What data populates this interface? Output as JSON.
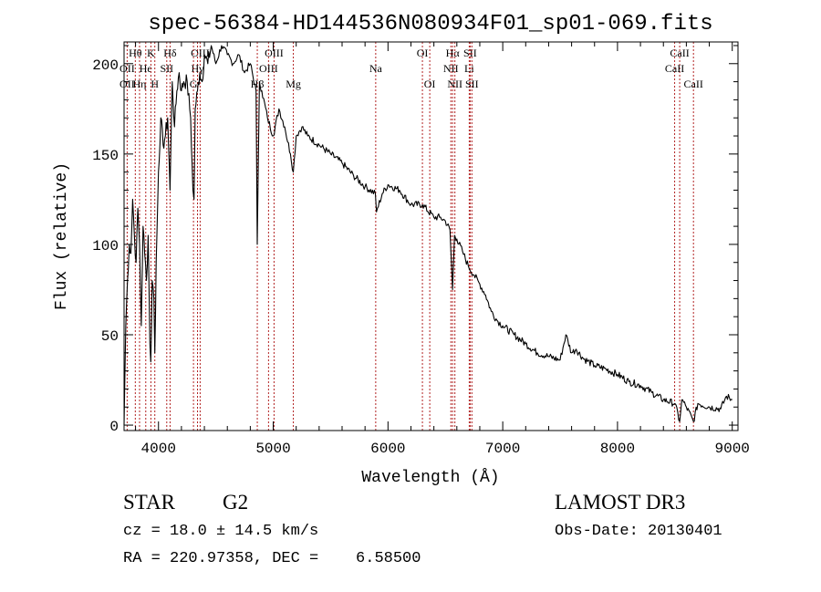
{
  "chart_data": {
    "type": "line",
    "title": "spec-56384-HD144536N080934F01_sp01-069.fits",
    "xlabel": "Wavelength (Å)",
    "ylabel": "Flux (relative)",
    "xlim": [
      3700,
      9050
    ],
    "ylim": [
      -3,
      212
    ],
    "xticks": [
      4000,
      5000,
      6000,
      7000,
      8000,
      9000
    ],
    "yticks": [
      0,
      50,
      100,
      150,
      200
    ],
    "grid": false,
    "line_color": "#000000",
    "marker_color": "#b22222",
    "series": [
      {
        "name": "flux",
        "x": [
          3700,
          3715,
          3730,
          3745,
          3760,
          3775,
          3790,
          3805,
          3820,
          3835,
          3850,
          3865,
          3880,
          3895,
          3910,
          3925,
          3933,
          3945,
          3960,
          3968,
          3980,
          4000,
          4020,
          4040,
          4060,
          4080,
          4101,
          4120,
          4140,
          4160,
          4180,
          4200,
          4220,
          4250,
          4280,
          4300,
          4310,
          4320,
          4340,
          4360,
          4380,
          4400,
          4430,
          4460,
          4500,
          4550,
          4600,
          4650,
          4700,
          4750,
          4800,
          4850,
          4861,
          4880,
          4900,
          4950,
          5000,
          5050,
          5100,
          5150,
          5175,
          5200,
          5250,
          5300,
          5400,
          5500,
          5600,
          5700,
          5800,
          5890,
          5900,
          5950,
          6000,
          6100,
          6200,
          6300,
          6400,
          6450,
          6500,
          6540,
          6563,
          6580,
          6600,
          6650,
          6700,
          6750,
          6800,
          6850,
          6900,
          6950,
          7000,
          7100,
          7200,
          7300,
          7400,
          7500,
          7550,
          7600,
          7640,
          7700,
          7800,
          7900,
          8000,
          8100,
          8200,
          8300,
          8400,
          8500,
          8542,
          8560,
          8600,
          8662,
          8700,
          8800,
          8900,
          8950,
          9000
        ],
        "y": [
          0,
          55,
          80,
          100,
          95,
          125,
          105,
          90,
          120,
          100,
          55,
          110,
          95,
          80,
          105,
          45,
          35,
          80,
          70,
          40,
          90,
          140,
          170,
          155,
          160,
          170,
          130,
          190,
          165,
          185,
          195,
          185,
          190,
          190,
          170,
          130,
          125,
          175,
          185,
          195,
          190,
          205,
          200,
          210,
          200,
          210,
          205,
          200,
          205,
          195,
          200,
          185,
          100,
          190,
          185,
          170,
          160,
          175,
          165,
          150,
          140,
          160,
          165,
          160,
          155,
          150,
          145,
          138,
          132,
          128,
          118,
          128,
          133,
          130,
          122,
          122,
          115,
          115,
          113,
          108,
          75,
          105,
          103,
          96,
          88,
          83,
          78,
          72,
          63,
          58,
          55,
          50,
          45,
          40,
          38,
          36,
          50,
          40,
          42,
          37,
          33,
          31,
          28,
          24,
          22,
          18,
          14,
          12,
          2,
          14,
          10,
          2,
          12,
          10,
          9,
          16,
          14
        ]
      }
    ],
    "line_markers": [
      {
        "label": "Hθ",
        "x": 3798,
        "row": 1
      },
      {
        "label": "OII",
        "x": 3727,
        "row": 2
      },
      {
        "label": "OII",
        "x": 3727,
        "row": 3
      },
      {
        "label": "Hη",
        "x": 3835,
        "row": 3
      },
      {
        "label": "He",
        "x": 3889,
        "row": 2
      },
      {
        "label": "K",
        "x": 3934,
        "row": 1
      },
      {
        "label": "H",
        "x": 3968,
        "row": 3
      },
      {
        "label": "SII",
        "x": 4072,
        "row": 2
      },
      {
        "label": "Hδ",
        "x": 4101,
        "row": 1
      },
      {
        "label": "OIII",
        "x": 4363,
        "row": 1
      },
      {
        "label": "Hγ",
        "x": 4340,
        "row": 2
      },
      {
        "label": "G",
        "x": 4305,
        "row": 3
      },
      {
        "label": "Hβ",
        "x": 4861,
        "row": 3
      },
      {
        "label": "OIII",
        "x": 5007,
        "row": 1
      },
      {
        "label": "OIII",
        "x": 4959,
        "row": 2
      },
      {
        "label": "Mg",
        "x": 5175,
        "row": 3
      },
      {
        "label": "Na",
        "x": 5893,
        "row": 2
      },
      {
        "label": "OI",
        "x": 6300,
        "row": 1
      },
      {
        "label": "OI",
        "x": 6364,
        "row": 3
      },
      {
        "label": "Hα",
        "x": 6563,
        "row": 1
      },
      {
        "label": "NII",
        "x": 6548,
        "row": 2
      },
      {
        "label": "NII",
        "x": 6583,
        "row": 3
      },
      {
        "label": "SII",
        "x": 6716,
        "row": 1
      },
      {
        "label": "Li",
        "x": 6708,
        "row": 2
      },
      {
        "label": "SII",
        "x": 6731,
        "row": 3
      },
      {
        "label": "CaII",
        "x": 8542,
        "row": 1
      },
      {
        "label": "CaII",
        "x": 8498,
        "row": 2
      },
      {
        "label": "CaII",
        "x": 8662,
        "row": 3
      }
    ]
  },
  "info": {
    "object_class": "STAR",
    "subclass": "G2",
    "survey": "LAMOST DR3",
    "redshift": "cz = 18.0 ± 14.5 km/s",
    "obs_date": "Obs-Date: 20130401",
    "coords": "RA = 220.97358, DEC =    6.58500"
  }
}
